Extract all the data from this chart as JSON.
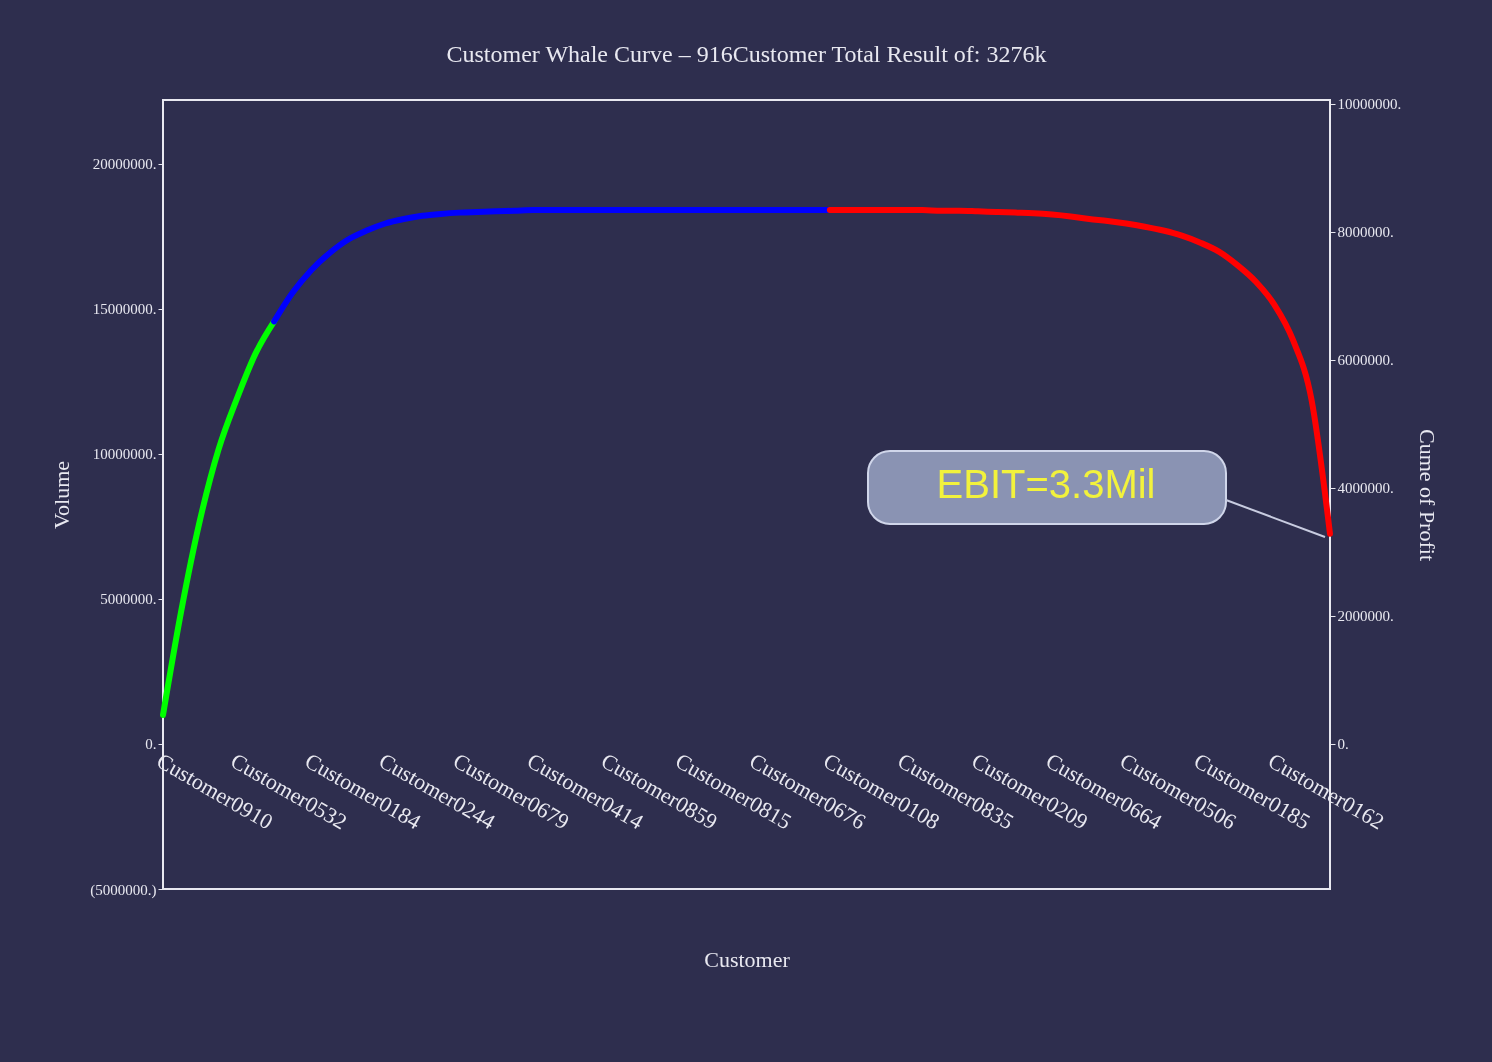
{
  "chart_data": {
    "type": "line",
    "title": "Customer Whale Curve – 916Customer Total Result of: 3276k",
    "xlabel": "Customer",
    "ylabel": "Volume",
    "y2label": "Cume of Profit",
    "categories": [
      "Customer0910",
      null,
      null,
      null,
      "Customer0532",
      null,
      null,
      null,
      "Customer0184",
      null,
      null,
      null,
      "Customer0244",
      null,
      null,
      null,
      "Customer0679",
      null,
      null,
      null,
      "Customer0414",
      null,
      null,
      null,
      "Customer0859",
      null,
      null,
      null,
      "Customer0815",
      null,
      null,
      null,
      "Customer0676",
      null,
      null,
      null,
      "Customer0108",
      null,
      null,
      null,
      "Customer0835",
      null,
      null,
      null,
      "Customer0209",
      null,
      null,
      null,
      "Customer0664",
      null,
      null,
      null,
      "Customer0506",
      null,
      null,
      null,
      "Customer0185",
      null,
      null,
      null,
      "Customer0162",
      null,
      null,
      null
    ],
    "series": [
      {
        "color": "#00ff00",
        "axis": "y2",
        "values": [
          450000,
          2100000,
          3500000,
          4600000,
          5400000,
          6100000,
          6600000,
          null,
          null,
          null,
          null,
          null,
          null,
          null,
          null,
          null,
          null,
          null,
          null,
          null,
          null,
          null,
          null,
          null,
          null,
          null,
          null,
          null,
          null,
          null,
          null,
          null,
          null,
          null,
          null,
          null,
          null,
          null,
          null,
          null,
          null,
          null,
          null,
          null,
          null,
          null,
          null,
          null,
          null,
          null,
          null,
          null,
          null,
          null,
          null,
          null,
          null,
          null,
          null,
          null,
          null,
          null,
          null,
          null
        ]
      },
      {
        "color": "#0000ff",
        "axis": "y2",
        "values": [
          null,
          null,
          null,
          null,
          null,
          null,
          6600000,
          7050000,
          7400000,
          7670000,
          7880000,
          8020000,
          8130000,
          8200000,
          8250000,
          8280000,
          8300000,
          8310000,
          8320000,
          8330000,
          8340000,
          8340000,
          8340000,
          8340000,
          8340000,
          8340000,
          8340000,
          8340000,
          8340000,
          8340000,
          8340000,
          8340000,
          8340000,
          8340000,
          8340000,
          8340000,
          8340000,
          null,
          null,
          null,
          null,
          null,
          null,
          null,
          null,
          null,
          null,
          null,
          null,
          null,
          null,
          null,
          null,
          null,
          null,
          null,
          null,
          null,
          null,
          null,
          null,
          null,
          null,
          null
        ]
      },
      {
        "color": "#ff0000",
        "axis": "y2",
        "values": [
          null,
          null,
          null,
          null,
          null,
          null,
          null,
          null,
          null,
          null,
          null,
          null,
          null,
          null,
          null,
          null,
          null,
          null,
          null,
          null,
          null,
          null,
          null,
          null,
          null,
          null,
          null,
          null,
          null,
          null,
          null,
          null,
          null,
          null,
          null,
          null,
          8340000,
          8340000,
          8340000,
          8340000,
          8340000,
          8340000,
          8330000,
          8330000,
          8320000,
          8310000,
          8300000,
          8290000,
          8270000,
          8240000,
          8200000,
          8170000,
          8130000,
          8080000,
          8020000,
          7940000,
          7830000,
          7690000,
          7480000,
          7220000,
          6860000,
          6310000,
          5380000,
          3280000
        ]
      }
    ],
    "ylim": [
      -5000000,
      22200000
    ],
    "yticks": [
      {
        "value": -5000000,
        "label": "(5000000.)"
      },
      {
        "value": 0,
        "label": "0."
      },
      {
        "value": 5000000,
        "label": "5000000."
      },
      {
        "value": 10000000,
        "label": "10000000."
      },
      {
        "value": 15000000,
        "label": "15000000."
      },
      {
        "value": 20000000,
        "label": "20000000."
      }
    ],
    "y2lim": [
      -2270000,
      10060000
    ],
    "y2ticks": [
      {
        "value": 0,
        "label": "0."
      },
      {
        "value": 2000000,
        "label": "2000000."
      },
      {
        "value": 4000000,
        "label": "4000000."
      },
      {
        "value": 6000000,
        "label": "6000000."
      },
      {
        "value": 8000000,
        "label": "8000000."
      },
      {
        "value": 10000000,
        "label": "10000000."
      }
    ],
    "annotations": [
      "EBIT=3.3Mil"
    ]
  }
}
